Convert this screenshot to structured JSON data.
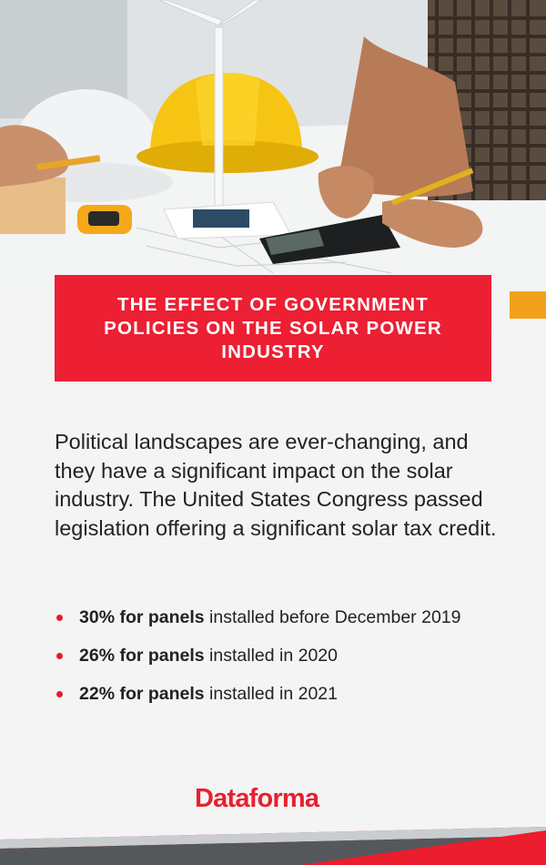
{
  "banner": {
    "title": "THE EFFECT OF GOVERNMENT POLICIES ON THE SOLAR POWER INDUSTRY"
  },
  "intro": {
    "text": "Political landscapes are ever-changing, and they have a significant impact on the solar industry. The United States Congress passed legislation offering a significant solar tax credit."
  },
  "bullets": [
    {
      "bold": "30% for panels",
      "rest": " installed before December 2019"
    },
    {
      "bold": "26% for panels",
      "rest": " installed in 2020"
    },
    {
      "bold": "22% for panels",
      "rest": " installed in 2021"
    }
  ],
  "logo": {
    "text": "Dataforma"
  },
  "colors": {
    "accent": "#ec1f33",
    "text": "#222222",
    "background": "#f4f4f4"
  }
}
